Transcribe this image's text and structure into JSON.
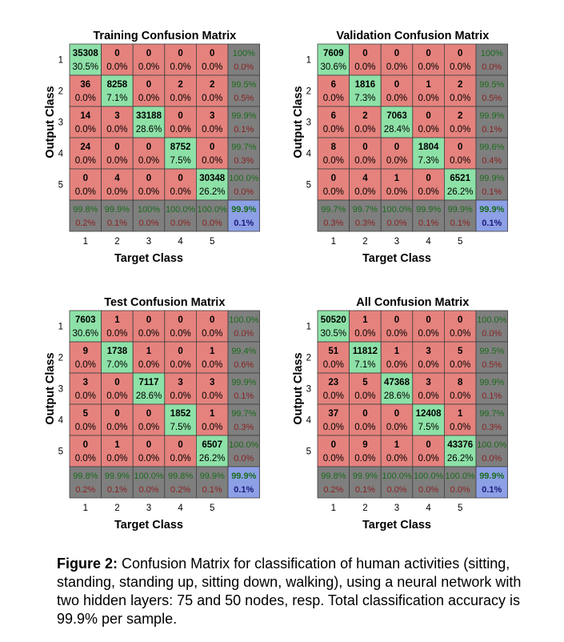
{
  "chart_data": [
    {
      "type": "heatmap",
      "title": "Training Confusion Matrix",
      "xlabel": "Target Class",
      "ylabel": "Output Class",
      "class_labels": [
        "1",
        "2",
        "3",
        "4",
        "5"
      ],
      "counts": [
        [
          "35308",
          "0",
          "0",
          "0",
          "0"
        ],
        [
          "36",
          "8258",
          "0",
          "2",
          "2"
        ],
        [
          "14",
          "3",
          "33188",
          "0",
          "3"
        ],
        [
          "24",
          "0",
          "0",
          "8752",
          "0"
        ],
        [
          "0",
          "4",
          "0",
          "0",
          "30348"
        ]
      ],
      "percents": [
        [
          "30.5%",
          "0.0%",
          "0.0%",
          "0.0%",
          "0.0%"
        ],
        [
          "0.0%",
          "7.1%",
          "0.0%",
          "0.0%",
          "0.0%"
        ],
        [
          "0.0%",
          "0.0%",
          "28.6%",
          "0.0%",
          "0.0%"
        ],
        [
          "0.0%",
          "0.0%",
          "0.0%",
          "7.5%",
          "0.0%"
        ],
        [
          "0.0%",
          "0.0%",
          "0.0%",
          "0.0%",
          "26.2%"
        ]
      ],
      "row_summary": [
        [
          "100%",
          "0.0%"
        ],
        [
          "99.5%",
          "0.5%"
        ],
        [
          "99.9%",
          "0.1%"
        ],
        [
          "99.7%",
          "0.3%"
        ],
        [
          "100.0%",
          "0.0%"
        ]
      ],
      "col_summary": [
        [
          "99.8%",
          "0.2%"
        ],
        [
          "99.9%",
          "0.1%"
        ],
        [
          "100%",
          "0.0%"
        ],
        [
          "100.0%",
          "0.0%"
        ],
        [
          "100.0%",
          "0.0%"
        ]
      ],
      "overall": [
        "99.9%",
        "0.1%"
      ]
    },
    {
      "type": "heatmap",
      "title": "Validation Confusion Matrix",
      "xlabel": "Target Class",
      "ylabel": "Output Class",
      "class_labels": [
        "1",
        "2",
        "3",
        "4",
        "5"
      ],
      "counts": [
        [
          "7609",
          "0",
          "0",
          "0",
          "0"
        ],
        [
          "6",
          "1816",
          "0",
          "1",
          "2"
        ],
        [
          "6",
          "2",
          "7063",
          "0",
          "2"
        ],
        [
          "8",
          "0",
          "0",
          "1804",
          "0"
        ],
        [
          "0",
          "4",
          "1",
          "0",
          "6521"
        ]
      ],
      "percents": [
        [
          "30.6%",
          "0.0%",
          "0.0%",
          "0.0%",
          "0.0%"
        ],
        [
          "0.0%",
          "7.3%",
          "0.0%",
          "0.0%",
          "0.0%"
        ],
        [
          "0.0%",
          "0.0%",
          "28.4%",
          "0.0%",
          "0.0%"
        ],
        [
          "0.0%",
          "0.0%",
          "0.0%",
          "7.3%",
          "0.0%"
        ],
        [
          "0.0%",
          "0.0%",
          "0.0%",
          "0.0%",
          "26.2%"
        ]
      ],
      "row_summary": [
        [
          "100%",
          "0.0%"
        ],
        [
          "99.5%",
          "0.5%"
        ],
        [
          "99.9%",
          "0.1%"
        ],
        [
          "99.6%",
          "0.4%"
        ],
        [
          "99.9%",
          "0.1%"
        ]
      ],
      "col_summary": [
        [
          "99.7%",
          "0.3%"
        ],
        [
          "99.7%",
          "0.3%"
        ],
        [
          "100.0%",
          "0.0%"
        ],
        [
          "99.9%",
          "0.1%"
        ],
        [
          "99.9%",
          "0.1%"
        ]
      ],
      "overall": [
        "99.9%",
        "0.1%"
      ]
    },
    {
      "type": "heatmap",
      "title": "Test Confusion Matrix",
      "xlabel": "Target Class",
      "ylabel": "Output Class",
      "class_labels": [
        "1",
        "2",
        "3",
        "4",
        "5"
      ],
      "counts": [
        [
          "7603",
          "1",
          "0",
          "0",
          "0"
        ],
        [
          "9",
          "1738",
          "1",
          "0",
          "1"
        ],
        [
          "3",
          "0",
          "7117",
          "3",
          "3"
        ],
        [
          "5",
          "0",
          "0",
          "1852",
          "1"
        ],
        [
          "0",
          "1",
          "0",
          "0",
          "6507"
        ]
      ],
      "percents": [
        [
          "30.6%",
          "0.0%",
          "0.0%",
          "0.0%",
          "0.0%"
        ],
        [
          "0.0%",
          "7.0%",
          "0.0%",
          "0.0%",
          "0.0%"
        ],
        [
          "0.0%",
          "0.0%",
          "28.6%",
          "0.0%",
          "0.0%"
        ],
        [
          "0.0%",
          "0.0%",
          "0.0%",
          "7.5%",
          "0.0%"
        ],
        [
          "0.0%",
          "0.0%",
          "0.0%",
          "0.0%",
          "26.2%"
        ]
      ],
      "row_summary": [
        [
          "100.0%",
          "0.0%"
        ],
        [
          "99.4%",
          "0.6%"
        ],
        [
          "99.9%",
          "0.1%"
        ],
        [
          "99.7%",
          "0.3%"
        ],
        [
          "100.0%",
          "0.0%"
        ]
      ],
      "col_summary": [
        [
          "99.8%",
          "0.2%"
        ],
        [
          "99.9%",
          "0.1%"
        ],
        [
          "100.0%",
          "0.0%"
        ],
        [
          "99.8%",
          "0.2%"
        ],
        [
          "99.9%",
          "0.1%"
        ]
      ],
      "overall": [
        "99.9%",
        "0.1%"
      ]
    },
    {
      "type": "heatmap",
      "title": "All Confusion Matrix",
      "xlabel": "Target Class",
      "ylabel": "Output Class",
      "class_labels": [
        "1",
        "2",
        "3",
        "4",
        "5"
      ],
      "counts": [
        [
          "50520",
          "1",
          "0",
          "0",
          "0"
        ],
        [
          "51",
          "11812",
          "1",
          "3",
          "5"
        ],
        [
          "23",
          "5",
          "47368",
          "3",
          "8"
        ],
        [
          "37",
          "0",
          "0",
          "12408",
          "1"
        ],
        [
          "0",
          "9",
          "1",
          "0",
          "43376"
        ]
      ],
      "percents": [
        [
          "30.5%",
          "0.0%",
          "0.0%",
          "0.0%",
          "0.0%"
        ],
        [
          "0.0%",
          "7.1%",
          "0.0%",
          "0.0%",
          "0.0%"
        ],
        [
          "0.0%",
          "0.0%",
          "28.6%",
          "0.0%",
          "0.0%"
        ],
        [
          "0.0%",
          "0.0%",
          "0.0%",
          "7.5%",
          "0.0%"
        ],
        [
          "0.0%",
          "0.0%",
          "0.0%",
          "0.0%",
          "26.2%"
        ]
      ],
      "row_summary": [
        [
          "100.0%",
          "0.0%"
        ],
        [
          "99.5%",
          "0.5%"
        ],
        [
          "99.9%",
          "0.1%"
        ],
        [
          "99.7%",
          "0.3%"
        ],
        [
          "100.0%",
          "0.0%"
        ]
      ],
      "col_summary": [
        [
          "99.8%",
          "0.2%"
        ],
        [
          "99.9%",
          "0.1%"
        ],
        [
          "100.0%",
          "0.0%"
        ],
        [
          "100.0%",
          "0.0%"
        ],
        [
          "100.0%",
          "0.0%"
        ]
      ],
      "overall": [
        "99.9%",
        "0.1%"
      ]
    }
  ],
  "colors": {
    "correct": "#8de1a7",
    "incorrect": "#e5827d",
    "summary": "#7f7f7f",
    "summary_green_text": "#1a6b1a",
    "summary_red_text": "#8a1f1f",
    "overall": "#8da0e6",
    "overall_text": "#1a1a7a",
    "grid": "#3f3f3f"
  },
  "caption": {
    "label": "Figure 2:",
    "text": "Confusion Matrix for classification of human activities (sitting, standing, standing up, sitting down, walking), using a neural network with two hidden layers: 75 and 50 nodes, resp. Total classification accuracy is 99.9% per sample."
  }
}
